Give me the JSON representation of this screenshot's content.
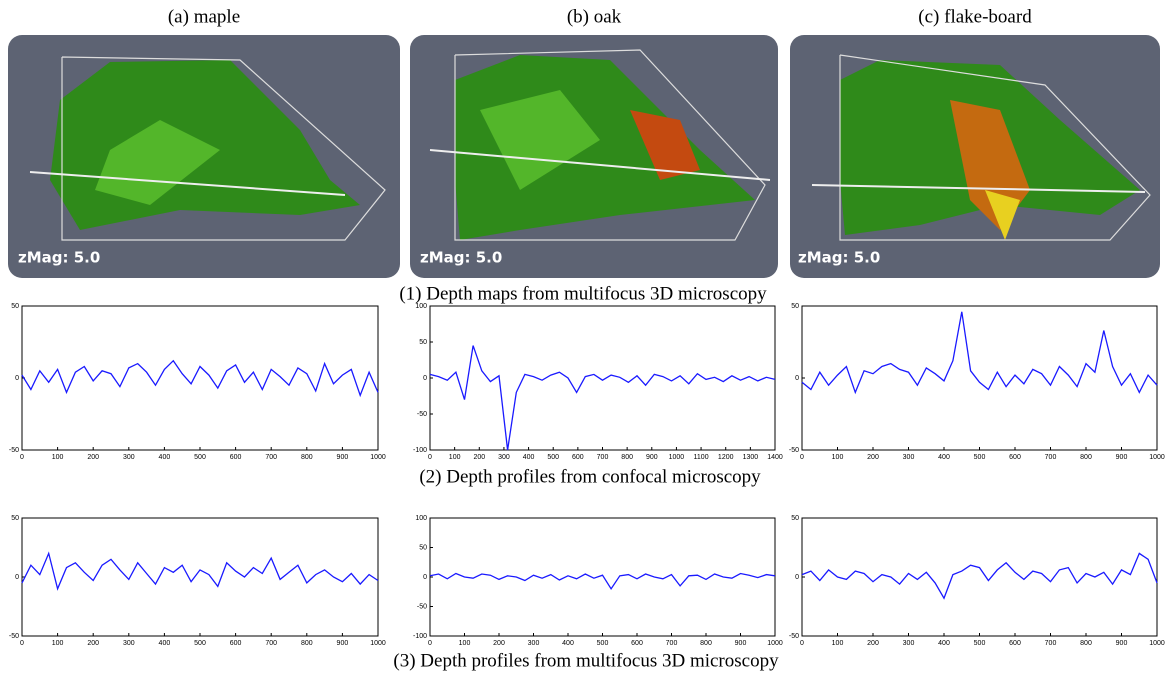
{
  "panel_titles": [
    "(a) maple",
    "(b) oak",
    "(c) flake-board"
  ],
  "zmag_labels": [
    "zMag: 5.0",
    "zMag: 5.0",
    "zMag: 5.0"
  ],
  "captions": [
    "(1) Depth maps from multifocus 3D microscopy",
    "(2) Depth profiles from confocal microscopy",
    "(3) Depth profiles from multifocus 3D microscopy"
  ],
  "chart_data": [
    {
      "type": "line",
      "color": "#1a1aff",
      "x": [
        0,
        25,
        50,
        75,
        100,
        125,
        150,
        175,
        200,
        225,
        250,
        275,
        300,
        325,
        350,
        375,
        400,
        425,
        450,
        475,
        500,
        525,
        550,
        575,
        600,
        625,
        650,
        675,
        700,
        725,
        750,
        775,
        800,
        825,
        850,
        875,
        900,
        925,
        950,
        975,
        1000
      ],
      "values": [
        2,
        -8,
        5,
        -3,
        6,
        -10,
        4,
        8,
        -2,
        5,
        3,
        -6,
        7,
        10,
        4,
        -5,
        6,
        12,
        3,
        -4,
        8,
        2,
        -7,
        5,
        9,
        -3,
        4,
        -8,
        6,
        1,
        -5,
        7,
        3,
        -9,
        10,
        -4,
        2,
        6,
        -12,
        4,
        -10
      ],
      "xlim": [
        0,
        1000
      ],
      "xticks": [
        0,
        100,
        200,
        300,
        400,
        500,
        600,
        700,
        800,
        900,
        1000
      ],
      "ylim": [
        -50,
        50
      ],
      "yticks": [
        -50,
        0,
        50
      ]
    },
    {
      "type": "line",
      "color": "#1a1aff",
      "x": [
        0,
        35,
        70,
        105,
        140,
        175,
        210,
        245,
        280,
        315,
        350,
        385,
        420,
        455,
        490,
        525,
        560,
        595,
        630,
        665,
        700,
        735,
        770,
        805,
        840,
        875,
        910,
        945,
        980,
        1015,
        1050,
        1085,
        1120,
        1155,
        1190,
        1225,
        1260,
        1295,
        1330,
        1365,
        1400
      ],
      "values": [
        5,
        2,
        -3,
        8,
        -30,
        45,
        10,
        -5,
        3,
        -100,
        -20,
        5,
        2,
        -3,
        4,
        8,
        0,
        -20,
        2,
        5,
        -3,
        4,
        1,
        -6,
        3,
        -10,
        5,
        2,
        -4,
        3,
        -8,
        6,
        -2,
        1,
        -5,
        3,
        -3,
        2,
        -4,
        1,
        -2
      ],
      "xlim": [
        0,
        1400
      ],
      "xticks": [
        0,
        100,
        200,
        300,
        400,
        500,
        600,
        700,
        800,
        900,
        1000,
        1100,
        1200,
        1300,
        1400
      ],
      "ylim": [
        -100,
        100
      ],
      "yticks": [
        -100,
        -50,
        0,
        50,
        100
      ]
    },
    {
      "type": "line",
      "color": "#1a1aff",
      "x": [
        0,
        25,
        50,
        75,
        100,
        125,
        150,
        175,
        200,
        225,
        250,
        275,
        300,
        325,
        350,
        375,
        400,
        425,
        450,
        475,
        500,
        525,
        550,
        575,
        600,
        625,
        650,
        675,
        700,
        725,
        750,
        775,
        800,
        825,
        850,
        875,
        900,
        925,
        950,
        975,
        1000
      ],
      "values": [
        -3,
        -8,
        4,
        -5,
        2,
        8,
        -10,
        5,
        3,
        8,
        10,
        6,
        4,
        -5,
        7,
        3,
        -2,
        12,
        46,
        5,
        -3,
        -8,
        4,
        -6,
        2,
        -4,
        6,
        3,
        -5,
        8,
        2,
        -6,
        10,
        4,
        33,
        8,
        -5,
        3,
        -10,
        2,
        -5
      ],
      "xlim": [
        0,
        1000
      ],
      "xticks": [
        0,
        100,
        200,
        300,
        400,
        500,
        600,
        700,
        800,
        900,
        1000
      ],
      "ylim": [
        -50,
        50
      ],
      "yticks": [
        -50,
        0,
        50
      ]
    },
    {
      "type": "line",
      "color": "#1a1aff",
      "x": [
        0,
        25,
        50,
        75,
        100,
        125,
        150,
        175,
        200,
        225,
        250,
        275,
        300,
        325,
        350,
        375,
        400,
        425,
        450,
        475,
        500,
        525,
        550,
        575,
        600,
        625,
        650,
        675,
        700,
        725,
        750,
        775,
        800,
        825,
        850,
        875,
        900,
        925,
        950,
        975,
        1000
      ],
      "values": [
        -5,
        10,
        2,
        20,
        -10,
        8,
        12,
        4,
        -3,
        10,
        15,
        6,
        -2,
        12,
        3,
        -6,
        8,
        4,
        10,
        -4,
        6,
        2,
        -8,
        12,
        5,
        0,
        8,
        3,
        16,
        -2,
        4,
        10,
        -5,
        2,
        6,
        0,
        -4,
        3,
        -6,
        2,
        -3
      ],
      "xlim": [
        0,
        1000
      ],
      "xticks": [
        0,
        100,
        200,
        300,
        400,
        500,
        600,
        700,
        800,
        900,
        1000
      ],
      "ylim": [
        -50,
        50
      ],
      "yticks": [
        -50,
        0,
        50
      ]
    },
    {
      "type": "line",
      "color": "#1a1aff",
      "x": [
        0,
        25,
        50,
        75,
        100,
        125,
        150,
        175,
        200,
        225,
        250,
        275,
        300,
        325,
        350,
        375,
        400,
        425,
        450,
        475,
        500,
        525,
        550,
        575,
        600,
        625,
        650,
        675,
        700,
        725,
        750,
        775,
        800,
        825,
        850,
        875,
        900,
        925,
        950,
        975,
        1000
      ],
      "values": [
        2,
        5,
        -3,
        6,
        0,
        -2,
        5,
        3,
        -4,
        2,
        0,
        -6,
        3,
        -2,
        4,
        -5,
        2,
        -3,
        5,
        -2,
        3,
        -20,
        2,
        4,
        -3,
        5,
        0,
        -3,
        4,
        -15,
        2,
        3,
        -4,
        5,
        0,
        -2,
        6,
        3,
        -1,
        4,
        2
      ],
      "xlim": [
        0,
        1000
      ],
      "xticks": [
        0,
        100,
        200,
        300,
        400,
        500,
        600,
        700,
        800,
        900,
        1000
      ],
      "ylim": [
        -100,
        100
      ],
      "yticks": [
        -100,
        -50,
        0,
        50,
        100
      ]
    },
    {
      "type": "line",
      "color": "#1a1aff",
      "x": [
        0,
        25,
        50,
        75,
        100,
        125,
        150,
        175,
        200,
        225,
        250,
        275,
        300,
        325,
        350,
        375,
        400,
        425,
        450,
        475,
        500,
        525,
        550,
        575,
        600,
        625,
        650,
        675,
        700,
        725,
        750,
        775,
        800,
        825,
        850,
        875,
        900,
        925,
        950,
        975,
        1000
      ],
      "values": [
        2,
        5,
        -3,
        6,
        0,
        -2,
        5,
        3,
        -4,
        2,
        0,
        -6,
        3,
        -2,
        4,
        -5,
        -18,
        2,
        5,
        10,
        8,
        -3,
        6,
        12,
        4,
        -2,
        5,
        3,
        -4,
        6,
        8,
        -5,
        3,
        0,
        4,
        -6,
        6,
        2,
        20,
        15,
        -5
      ],
      "xlim": [
        0,
        1000
      ],
      "xticks": [
        0,
        100,
        200,
        300,
        400,
        500,
        600,
        700,
        800,
        900,
        1000
      ],
      "ylim": [
        -50,
        50
      ],
      "yticks": [
        -50,
        0,
        50
      ]
    }
  ]
}
